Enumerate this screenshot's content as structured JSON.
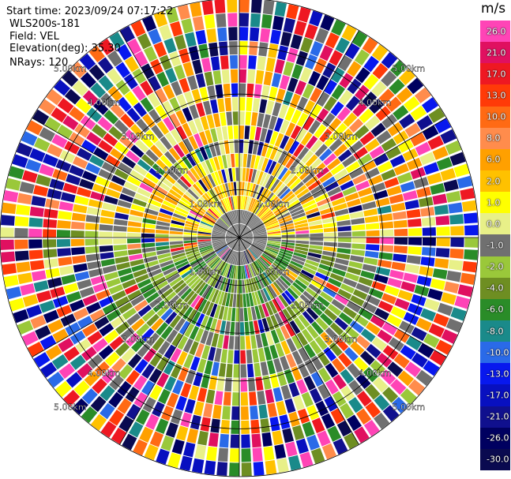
{
  "meta": {
    "start_time": "Start time: 2023/09/24 07:17:22",
    "instrument": "WLS200s-181",
    "field": "Field: VEL",
    "elevation": "Elevation(deg): 35.30",
    "nrays": "NRays: 120"
  },
  "chart_data": {
    "type": "heatmap",
    "projection": "polar PPI",
    "field": "VEL",
    "nrays": 120,
    "elevation_deg": 35.3,
    "range_rings_km": [
      1.0,
      2.0,
      3.0,
      4.0,
      5.0
    ],
    "ring_labels": [
      "1.00km",
      "2.00km",
      "3.00km",
      "4.00km",
      "5.00km"
    ],
    "max_range_km": 5.0,
    "spokes_deg": [
      0,
      30,
      60,
      90,
      120,
      150,
      180,
      210,
      240,
      270,
      300,
      330
    ],
    "colorbar": {
      "unit": "m/s",
      "ticks": [
        "26.0",
        "21.0",
        "17.0",
        "13.0",
        "10.0",
        "8.0",
        "6.0",
        "2.0",
        "1.0",
        "0.0",
        "-1.0",
        "-2.0",
        "-4.0",
        "-6.0",
        "-8.0",
        "-10.0",
        "-13.0",
        "-17.0",
        "-21.0",
        "-26.0",
        "-30.0"
      ],
      "colors": [
        "#ff44b6",
        "#e01060",
        "#ee1822",
        "#ff3a08",
        "#ff6a14",
        "#ff8c4c",
        "#ffa000",
        "#ffc100",
        "#ffff00",
        "#e8f088",
        "#707070",
        "#9ac83a",
        "#6e8e22",
        "#2a8c28",
        "#1a8a8a",
        "#2a6ae8",
        "#0818ee",
        "#0810c0",
        "#10108e",
        "#000060",
        "#0a0a50"
      ]
    }
  }
}
